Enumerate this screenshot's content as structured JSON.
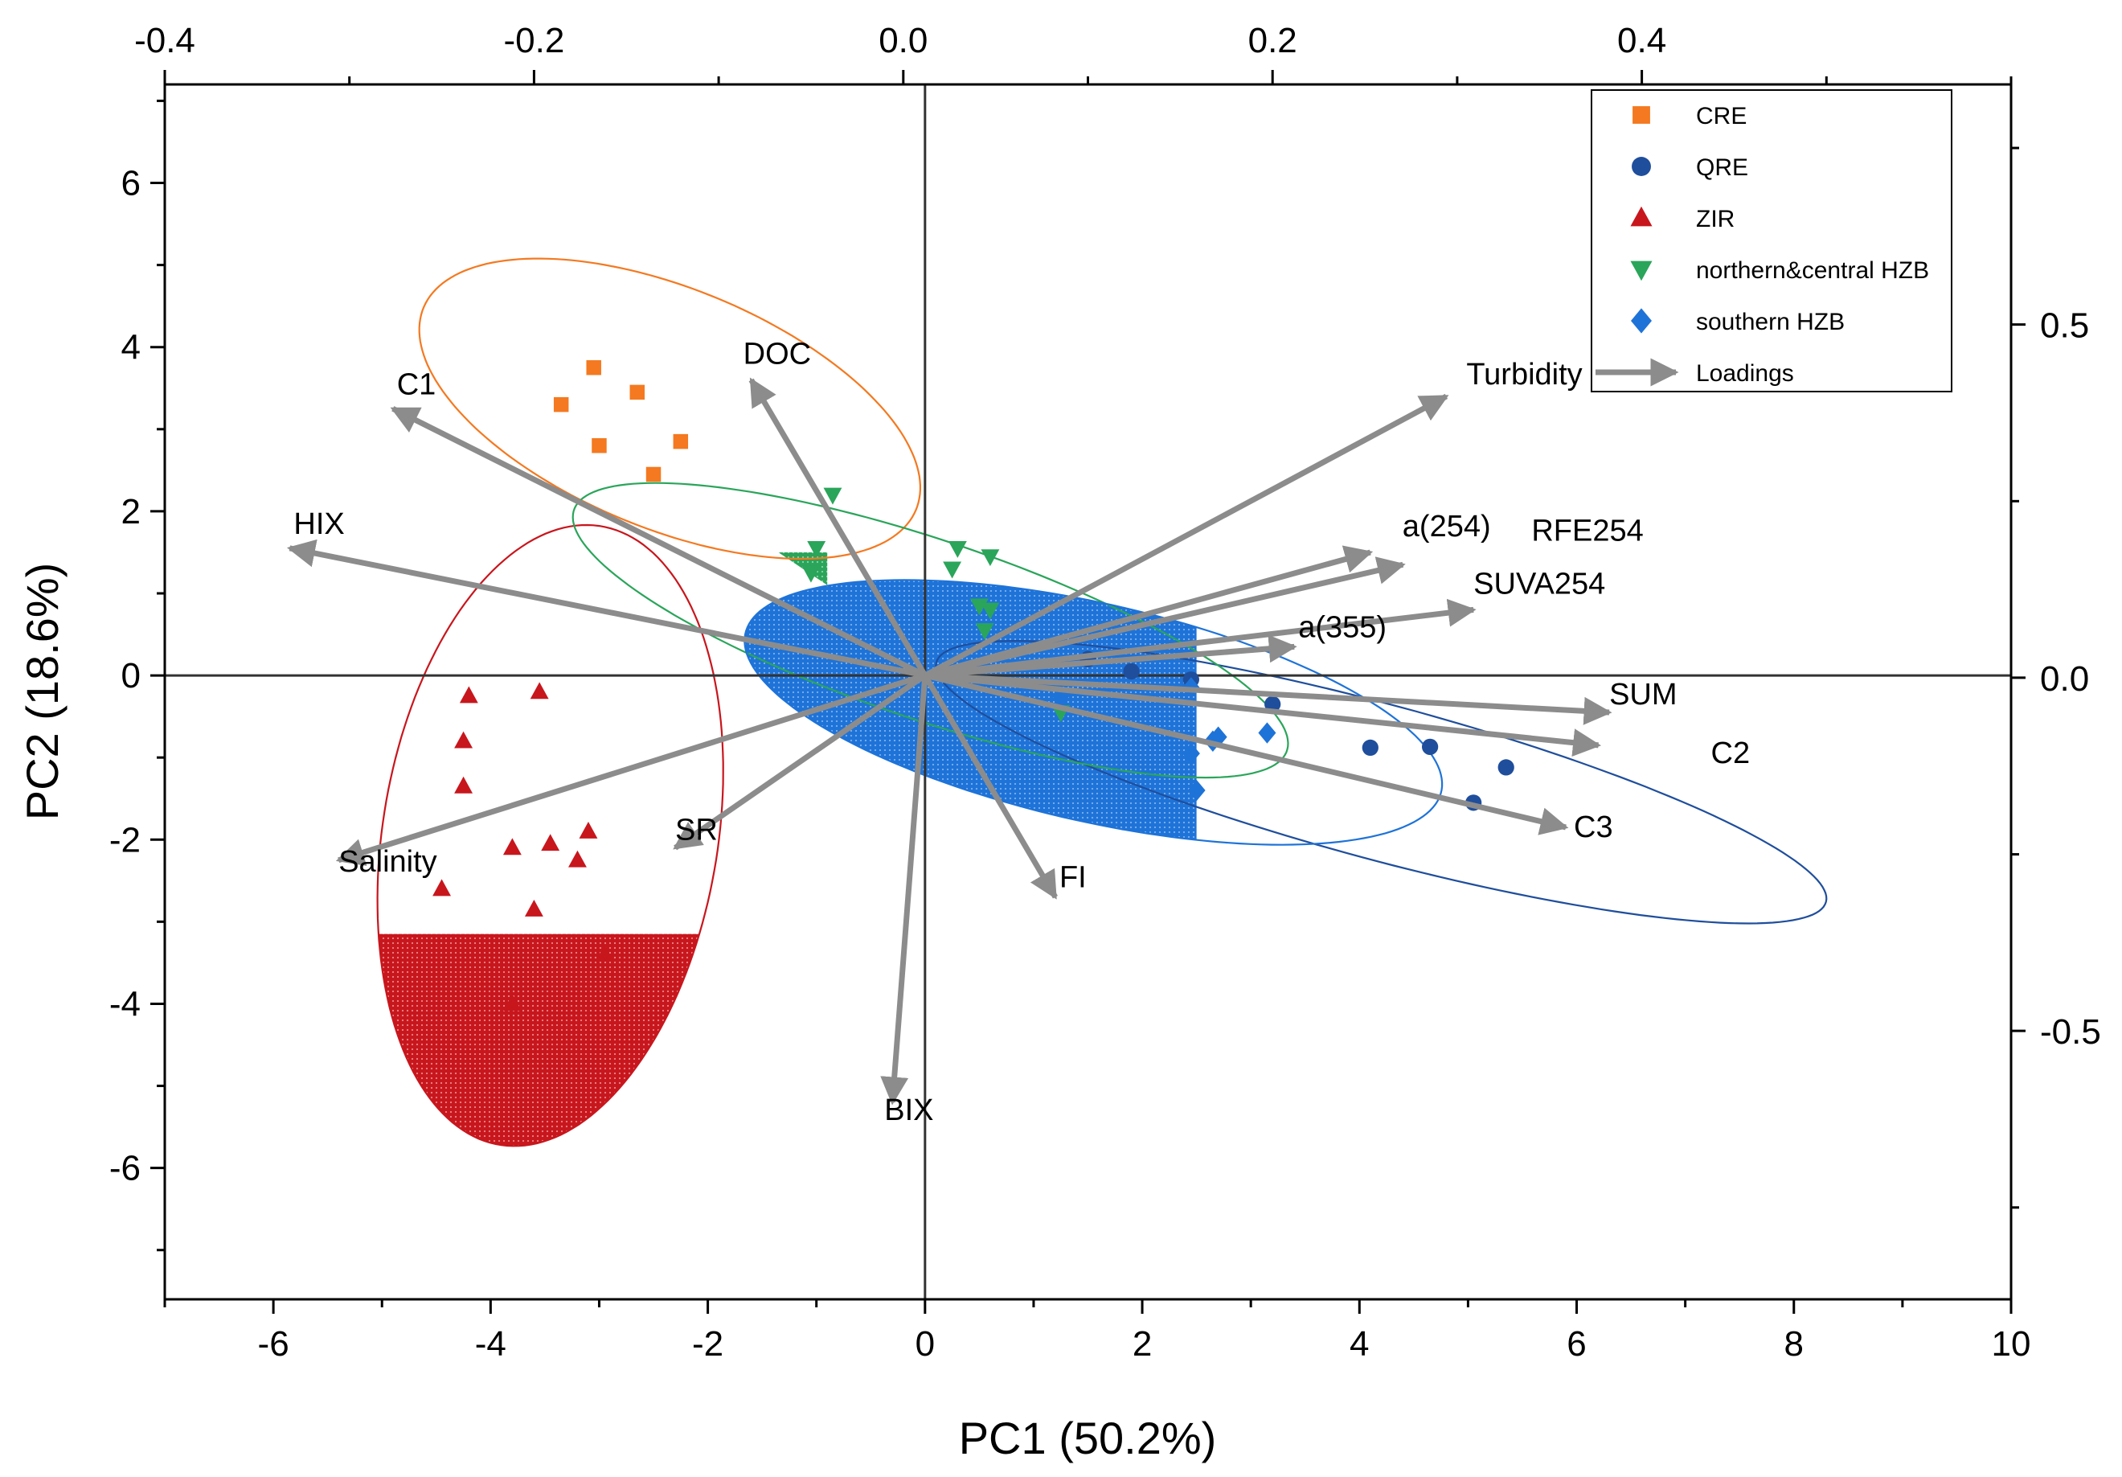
{
  "chart_data": {
    "type": "scatter",
    "subtype": "PCA biplot",
    "xlabel": "PC1 (50.2%)",
    "ylabel": "PC2 (18.6%)",
    "xlim": [
      -7,
      10
    ],
    "ylim": [
      -7.6,
      7.2
    ],
    "xticks": [
      -6,
      -4,
      -2,
      0,
      2,
      4,
      6,
      8,
      10
    ],
    "yticks": [
      -6,
      -4,
      -2,
      0,
      2,
      4,
      6
    ],
    "top_axis": {
      "lim": [
        -0.4,
        0.6
      ],
      "ticks": [
        -0.4,
        -0.2,
        0.0,
        0.2,
        0.4
      ],
      "tick_labels": [
        "-0.4",
        "-0.2",
        "0.0",
        "0.2",
        "0.4"
      ]
    },
    "right_axis": {
      "lim": [
        -0.88,
        0.84
      ],
      "ticks": [
        -0.5,
        0.0,
        0.5
      ],
      "tick_labels": [
        "-0.5",
        "0.0",
        "0.5"
      ]
    },
    "series": [
      {
        "name": "CRE",
        "color": "#f47920",
        "marker": "square",
        "points": [
          [
            -3.05,
            3.75
          ],
          [
            -2.65,
            3.45
          ],
          [
            -3.35,
            3.3
          ],
          [
            -2.25,
            2.85
          ],
          [
            -3.0,
            2.8
          ],
          [
            -2.5,
            2.45
          ]
        ],
        "ellipse": {
          "cx": -2.35,
          "cy": 3.25,
          "rx": 2.6,
          "ry": 1.38,
          "angle_deg": -33,
          "filled": false
        }
      },
      {
        "name": "QRE",
        "color": "#1f4e9c",
        "marker": "circle",
        "points": [
          [
            1.5,
            0.2
          ],
          [
            1.9,
            0.05
          ],
          [
            2.45,
            -0.05
          ],
          [
            3.2,
            -0.35
          ],
          [
            4.1,
            -0.88
          ],
          [
            4.65,
            -0.87
          ],
          [
            5.35,
            -1.12
          ],
          [
            5.05,
            -1.55
          ]
        ],
        "ellipse": {
          "cx": 4.2,
          "cy": -1.3,
          "rx": 4.35,
          "ry": 0.92,
          "angle_deg": -20,
          "filled": false
        }
      },
      {
        "name": "ZIR",
        "color": "#c8161d",
        "marker": "triangle-up",
        "points": [
          [
            -4.2,
            -0.25
          ],
          [
            -3.55,
            -0.2
          ],
          [
            -4.25,
            -0.8
          ],
          [
            -4.25,
            -1.35
          ],
          [
            -3.8,
            -2.1
          ],
          [
            -3.45,
            -2.05
          ],
          [
            -3.1,
            -1.9
          ],
          [
            -3.2,
            -2.25
          ],
          [
            -4.45,
            -2.6
          ],
          [
            -3.6,
            -2.85
          ],
          [
            -2.95,
            -3.4
          ],
          [
            -3.8,
            -4.0
          ]
        ],
        "ellipse": {
          "cx": -3.45,
          "cy": -1.95,
          "rx": 3.8,
          "ry": 1.55,
          "angle_deg": -96,
          "filled": true,
          "fill_from_y": -3.15
        }
      },
      {
        "name": "northern&central HZB",
        "color": "#2aa55a",
        "marker": "triangle-down",
        "points": [
          [
            -0.85,
            2.2
          ],
          [
            -1.0,
            1.55
          ],
          [
            0.3,
            1.55
          ],
          [
            0.6,
            1.45
          ],
          [
            0.25,
            1.3
          ],
          [
            -1.05,
            1.25
          ],
          [
            0.5,
            0.85
          ],
          [
            0.6,
            0.8
          ],
          [
            0.55,
            0.55
          ],
          [
            1.25,
            -0.45
          ]
        ],
        "ellipse": {
          "cx": 0.05,
          "cy": 0.55,
          "rx": 3.6,
          "ry": 1.05,
          "angle_deg": -25,
          "filled": false
        }
      },
      {
        "name": "southern HZB",
        "color": "#1e73d8",
        "marker": "diamond",
        "points": [
          [
            1.25,
            -0.25
          ],
          [
            2.45,
            -0.15
          ],
          [
            2.7,
            -0.75
          ],
          [
            2.65,
            -0.8
          ],
          [
            3.15,
            -0.7
          ],
          [
            2.45,
            -0.95
          ],
          [
            2.5,
            -1.4
          ]
        ],
        "ellipse": {
          "cx": 1.55,
          "cy": -0.45,
          "rx": 3.35,
          "ry": 1.3,
          "angle_deg": -18,
          "filled": true,
          "fill_to_x": 2.5
        }
      }
    ],
    "loadings": [
      {
        "name": "DOC",
        "x": -1.6,
        "y": 3.6
      },
      {
        "name": "C1",
        "x": -4.9,
        "y": 3.25
      },
      {
        "name": "HIX",
        "x": -5.85,
        "y": 1.55
      },
      {
        "name": "Salinity",
        "x": -5.4,
        "y": -2.25
      },
      {
        "name": "SR",
        "x": -2.3,
        "y": -2.1
      },
      {
        "name": "BIX",
        "x": -0.3,
        "y": -5.2
      },
      {
        "name": "FI",
        "x": 1.2,
        "y": -2.7
      },
      {
        "name": "Turbidity",
        "x": 4.8,
        "y": 3.4
      },
      {
        "name": "a(254)",
        "x": 4.1,
        "y": 1.5
      },
      {
        "name": "RFE254",
        "x": 4.4,
        "y": 1.35
      },
      {
        "name": "SUVA254",
        "x": 5.05,
        "y": 0.8
      },
      {
        "name": "a(355)",
        "x": 3.4,
        "y": 0.35
      },
      {
        "name": "SUM",
        "x": 6.3,
        "y": -0.45
      },
      {
        "name": "C2",
        "x": 6.2,
        "y": -0.85
      },
      {
        "name": "C3",
        "x": 5.9,
        "y": -1.85
      }
    ],
    "loadings_color": "#8c8c8c",
    "legend": {
      "position": "top-right",
      "entries": [
        "CRE",
        "QRE",
        "ZIR",
        "northern&central HZB",
        "southern HZB",
        "Loadings"
      ]
    }
  }
}
